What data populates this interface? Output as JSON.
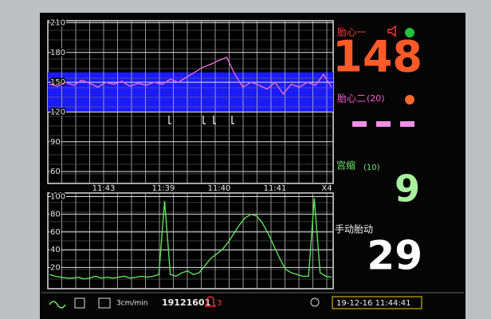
{
  "fhr_chart": {
    "type": "line",
    "ylim": [
      48,
      212
    ],
    "yticks": [
      210,
      180,
      150,
      120,
      90,
      60
    ],
    "normal_band": [
      120,
      160
    ],
    "time_labels": [
      "11:43",
      "11:39",
      "11:40",
      "11:41"
    ],
    "speed_label": "X4",
    "color": "#e86ad8",
    "values": [
      148,
      146,
      150,
      147,
      152,
      149,
      145,
      150,
      148,
      151,
      146,
      149,
      147,
      150,
      148,
      153,
      150,
      155,
      160,
      165,
      168,
      172,
      175,
      158,
      145,
      150,
      147,
      143,
      150,
      138,
      148,
      145,
      150,
      147,
      158,
      145
    ]
  },
  "toco_chart": {
    "type": "line",
    "ylim": [
      -4,
      104
    ],
    "yticks": [
      100,
      80,
      60,
      40,
      20
    ],
    "color": "#5fe05a",
    "values": [
      12,
      10,
      9,
      8,
      8,
      9,
      7,
      8,
      10,
      8,
      9,
      8,
      9,
      10,
      8,
      9,
      10,
      9,
      10,
      12,
      95,
      12,
      10,
      14,
      16,
      12,
      14,
      22,
      30,
      35,
      40,
      48,
      58,
      68,
      76,
      80,
      78,
      70,
      58,
      44,
      30,
      18,
      14,
      12,
      10,
      10,
      98,
      14,
      10,
      9
    ]
  },
  "panel": {
    "fhr1_label": "胎心一",
    "fhr1_value": 148,
    "fhr2_label": "胎心二",
    "fhr2_channel": "(20)",
    "toco_label": "宫缩",
    "toco_zero": "(10)",
    "toco_value": 9,
    "fm_label": "手动胎动",
    "fm_value": 29
  },
  "status_bar": {
    "speed": "3cm/min",
    "record_id": "19121601",
    "alarm_count": 3,
    "datetime": "19-12-16  11:44:41"
  }
}
